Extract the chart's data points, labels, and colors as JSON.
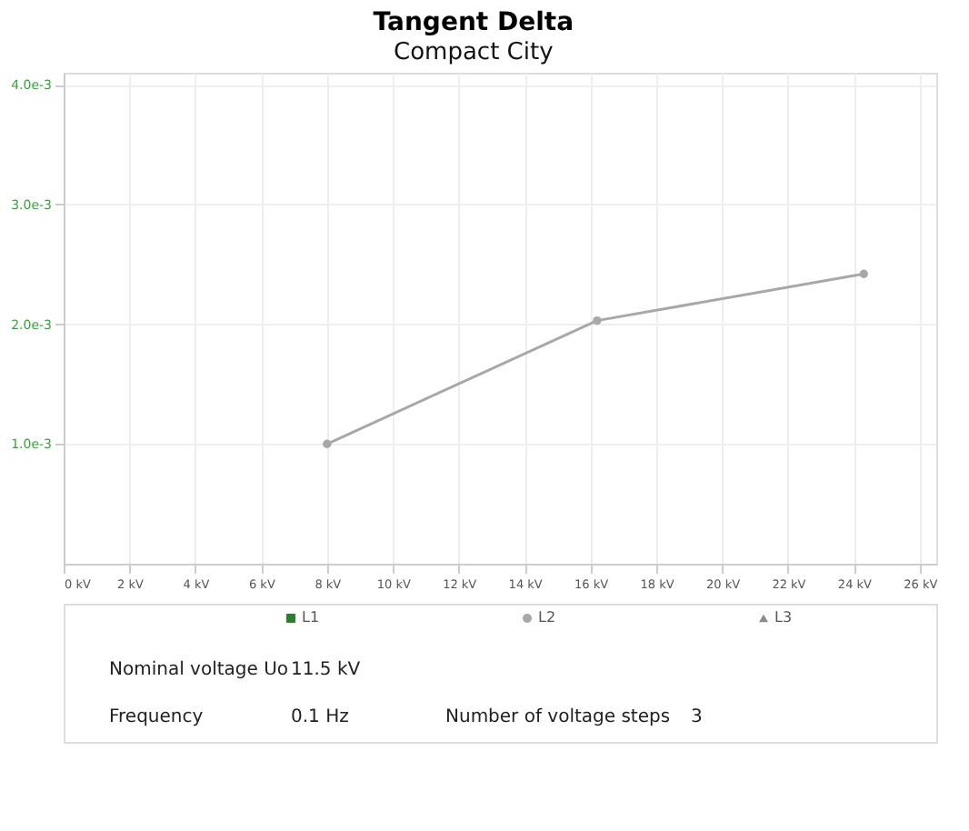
{
  "chart_data": {
    "type": "line",
    "title": "Tangent Delta",
    "subtitle": "Compact City",
    "x": [
      8.0,
      16.2,
      24.3
    ],
    "series": [
      {
        "name": "L1",
        "color": "#2e7d32",
        "marker": "square",
        "values": [
          null,
          null,
          null
        ]
      },
      {
        "name": "L2",
        "color": "#a8a8a8",
        "marker": "circle",
        "values": [
          0.001,
          0.00203,
          0.00242
        ]
      },
      {
        "name": "L3",
        "color": "#8a8a8a",
        "marker": "triangle",
        "values": [
          null,
          null,
          null
        ]
      }
    ],
    "xlim": [
      0,
      26.5
    ],
    "xticks": [
      {
        "value": 0,
        "label": "0 kV"
      },
      {
        "value": 2,
        "label": "2 kV"
      },
      {
        "value": 4,
        "label": "4 kV"
      },
      {
        "value": 6,
        "label": "6 kV"
      },
      {
        "value": 8,
        "label": "8 kV"
      },
      {
        "value": 10,
        "label": "10 kV"
      },
      {
        "value": 12,
        "label": "12 kV"
      },
      {
        "value": 14,
        "label": "14 kV"
      },
      {
        "value": 16,
        "label": "16 kV"
      },
      {
        "value": 18,
        "label": "18 kV"
      },
      {
        "value": 20,
        "label": "20 kV"
      },
      {
        "value": 22,
        "label": "22 kV"
      },
      {
        "value": 24,
        "label": "24 kV"
      },
      {
        "value": 26,
        "label": "26 kV"
      }
    ],
    "ylim": [
      0,
      0.0041
    ],
    "yticks": [
      {
        "value": 0.001,
        "label": "1.0e-3"
      },
      {
        "value": 0.002,
        "label": "2.0e-3"
      },
      {
        "value": 0.003,
        "label": "3.0e-3"
      },
      {
        "value": 0.004,
        "label": "4.0e-3"
      }
    ],
    "grid": true,
    "legend": "bottom",
    "line_style": "solid",
    "annotations": [
      "Nominal voltage Uo",
      "11.5 kV",
      "Frequency",
      "0.1 Hz",
      "Number of voltage steps",
      "3"
    ]
  }
}
